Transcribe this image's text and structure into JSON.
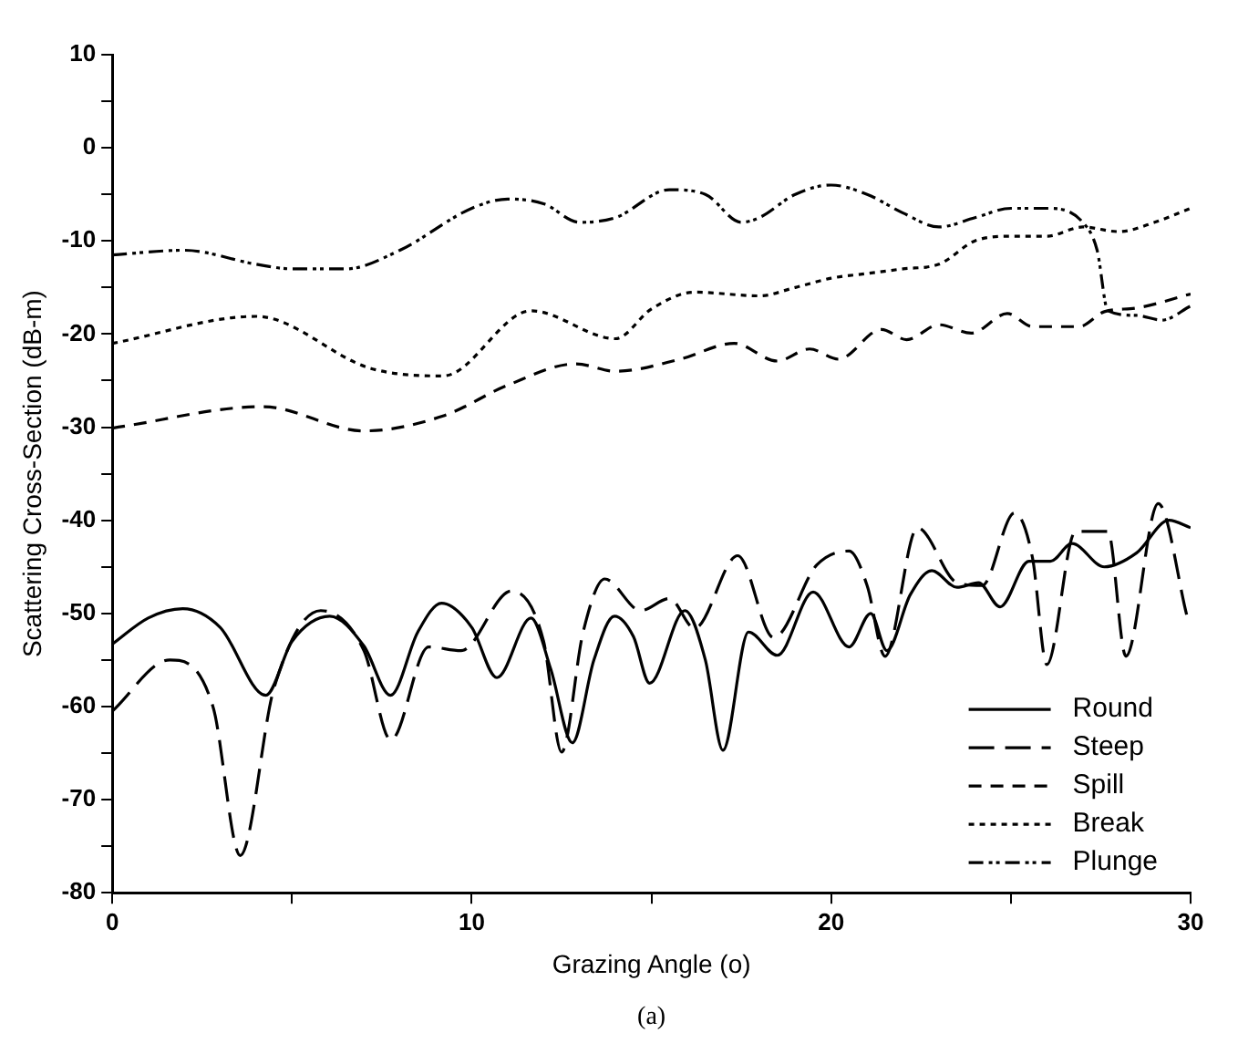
{
  "chart_data": {
    "type": "line",
    "xlabel": "Grazing Angle (o)",
    "ylabel": "Scattering Cross-Section (dB-m)",
    "annotations": [
      "(a)"
    ],
    "xlim": [
      0,
      30
    ],
    "xticks": [
      0,
      {
        "value": 5,
        "label": null
      },
      10,
      {
        "value": 15,
        "label": null
      },
      20,
      {
        "value": 25,
        "label": null
      },
      30
    ],
    "ylim": [
      -80,
      10
    ],
    "yticks": [
      -80,
      {
        "value": -75,
        "label": null
      },
      -70,
      {
        "value": -65,
        "label": null
      },
      -60,
      {
        "value": -55,
        "label": null
      },
      -50,
      {
        "value": -45,
        "label": null
      },
      -40,
      {
        "value": -35,
        "label": null
      },
      -30,
      {
        "value": -25,
        "label": null
      },
      -20,
      {
        "value": -15,
        "label": null
      },
      -10,
      {
        "value": -5,
        "label": null
      },
      0,
      {
        "value": 5,
        "label": null
      },
      10
    ],
    "grid": false,
    "legend": "bottom right",
    "marker": "none",
    "series": [
      {
        "name": "Round",
        "color": "#000000",
        "line_style": "solid",
        "x": [
          0,
          1,
          1.96,
          3,
          4.27,
          5,
          6.05,
          7,
          7.74,
          8.5,
          9.16,
          10,
          10.7,
          11.65,
          12.2,
          12.8,
          13.4,
          13.97,
          14.5,
          14.95,
          15.93,
          16.5,
          16.99,
          17.7,
          18.5,
          19.5,
          20.5,
          21.1,
          21.55,
          22.2,
          22.8,
          23.5,
          24.1,
          24.7,
          25.5,
          26.1,
          26.7,
          27.6,
          28.5,
          29.4,
          30
        ],
        "values": [
          -53.3,
          -50.5,
          -49.5,
          -51.5,
          -58.8,
          -53,
          -50.3,
          -53.5,
          -58.8,
          -52,
          -48.9,
          -51.5,
          -56.9,
          -50.5,
          -56,
          -63.9,
          -55,
          -50.3,
          -52.5,
          -57.5,
          -49.7,
          -55,
          -64.7,
          -52,
          -54.5,
          -47.7,
          -53.6,
          -50,
          -54,
          -48,
          -45.4,
          -47.2,
          -46.7,
          -49.3,
          -44.4,
          -44.4,
          -42.5,
          -45,
          -43.5,
          -40,
          -40.8
        ]
      },
      {
        "name": "Steep",
        "color": "#000000",
        "line_style": "dashed",
        "x": [
          0,
          1.6,
          2.8,
          3.56,
          4.5,
          5.8,
          7,
          7.75,
          8.8,
          9.7,
          11.1,
          12,
          12.5,
          13.1,
          13.7,
          14.7,
          15.5,
          16.2,
          17.4,
          18.4,
          19.6,
          20.5,
          21,
          21.5,
          22.4,
          23.5,
          24.2,
          25.1,
          25.6,
          26,
          26.8,
          27.7,
          28.2,
          29.1,
          29.9
        ],
        "values": [
          -60.5,
          -55,
          -60,
          -76,
          -58,
          -49.7,
          -54,
          -63.6,
          -53.6,
          -54,
          -47.6,
          -53,
          -64.9,
          -52,
          -46.3,
          -49.7,
          -48.4,
          -51.6,
          -43.8,
          -52.6,
          -44.8,
          -43.3,
          -47,
          -54.6,
          -40.8,
          -46.7,
          -47,
          -39.2,
          -44,
          -55.5,
          -41.2,
          -41.2,
          -54.6,
          -38.2,
          -50.3
        ]
      },
      {
        "name": "Spill",
        "color": "#000000",
        "line_style": "dashed",
        "x": [
          0,
          4.2,
          7,
          9.2,
          11,
          12.9,
          14,
          15.8,
          17.3,
          18.5,
          19.4,
          20.2,
          21.4,
          22.1,
          23,
          23.9,
          24.9,
          25.6,
          26.9,
          27.6,
          28.5,
          30
        ],
        "values": [
          -30.1,
          -27.8,
          -30.4,
          -28.8,
          -25.5,
          -23.2,
          -24,
          -22.7,
          -21,
          -22.9,
          -21.6,
          -22.7,
          -19.5,
          -20.6,
          -19,
          -19.9,
          -17.8,
          -19.2,
          -19.2,
          -17.6,
          -17.2,
          -15.7
        ]
      },
      {
        "name": "Break",
        "color": "#000000",
        "line_style": "dotted",
        "x": [
          0,
          4,
          7.2,
          9.2,
          11.65,
          14,
          15,
          16.2,
          18,
          19,
          20,
          21,
          22,
          23,
          24,
          25,
          26,
          27,
          28,
          29,
          30
        ],
        "values": [
          -21,
          -18.1,
          -23.7,
          -24.5,
          -17.5,
          -20.5,
          -17.3,
          -15.5,
          -15.9,
          -15,
          -14,
          -13.5,
          -13,
          -12.5,
          -10,
          -9.5,
          -9.5,
          -8.5,
          -9,
          -8,
          -6.5
        ]
      },
      {
        "name": "Plunge",
        "color": "#000000",
        "line_style": "dotted",
        "x": [
          0,
          2,
          4,
          5,
          6.5,
          8,
          10,
          11,
          12,
          13,
          14,
          15.5,
          16.5,
          17.5,
          18,
          19,
          20,
          21,
          22,
          23,
          24,
          25,
          26,
          27,
          27.4,
          27.7,
          28.5,
          29.2,
          30
        ],
        "values": [
          -11.5,
          -11,
          -12.5,
          -13,
          -13,
          -11,
          -6.5,
          -5.5,
          -6,
          -8,
          -7.5,
          -4.5,
          -5,
          -8,
          -7.5,
          -5,
          -4,
          -5,
          -7,
          -8.5,
          -7.5,
          -6.5,
          -6.5,
          -8,
          -11,
          -17.5,
          -18,
          -18.5,
          -17
        ]
      }
    ]
  }
}
